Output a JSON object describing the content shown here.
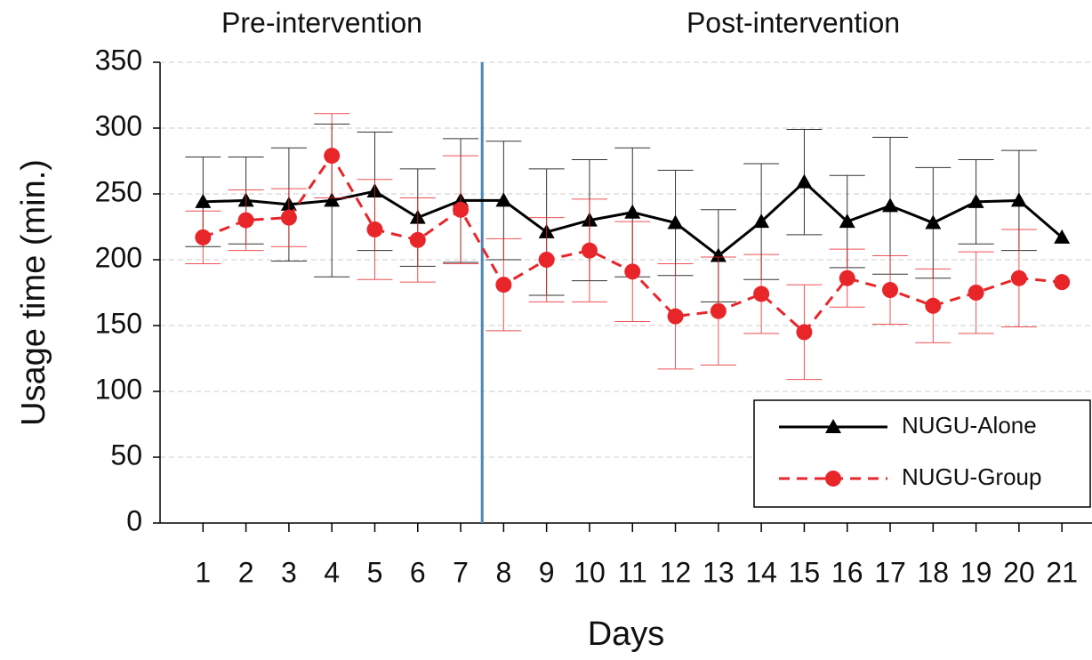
{
  "chart_data": {
    "type": "line",
    "annotations": [
      "Pre-intervention",
      "Post-intervention"
    ],
    "divider_x": 7.5,
    "x_label": "Days",
    "y_label": "Usage time (min.)",
    "x": [
      1,
      2,
      3,
      4,
      5,
      6,
      7,
      8,
      9,
      10,
      11,
      12,
      13,
      14,
      15,
      16,
      17,
      18,
      19,
      20,
      21
    ],
    "series": [
      {
        "name": "NUGU-Alone",
        "color": "#000000",
        "dash": false,
        "marker": "triangle",
        "values": [
          244,
          245,
          242,
          245,
          252,
          232,
          245,
          245,
          221,
          230,
          236,
          228,
          203,
          229,
          259,
          229,
          241,
          228,
          244,
          245,
          217
        ],
        "errors": [
          34,
          33,
          43,
          58,
          45,
          37,
          47,
          45,
          48,
          46,
          49,
          40,
          35,
          44,
          40,
          35,
          52,
          42,
          32,
          38,
          null
        ]
      },
      {
        "name": "NUGU-Group",
        "color": "#e8262a",
        "dash": true,
        "marker": "circle",
        "values": [
          217,
          230,
          232,
          279,
          223,
          215,
          238,
          181,
          200,
          207,
          191,
          157,
          161,
          174,
          145,
          186,
          177,
          165,
          175,
          186,
          183
        ],
        "errors": [
          20,
          23,
          22,
          32,
          38,
          32,
          41,
          35,
          32,
          39,
          38,
          40,
          41,
          30,
          36,
          22,
          26,
          28,
          31,
          37,
          null
        ]
      }
    ],
    "xlim": [
      0,
      21.7
    ],
    "xticks": [
      1,
      2,
      3,
      4,
      5,
      6,
      7,
      8,
      9,
      10,
      11,
      12,
      13,
      14,
      15,
      16,
      17,
      18,
      19,
      20,
      21
    ],
    "ylim": [
      0,
      350
    ],
    "yticks": [
      0,
      50,
      100,
      150,
      200,
      250,
      300,
      350
    ],
    "grid": true,
    "legend": "lower right"
  }
}
